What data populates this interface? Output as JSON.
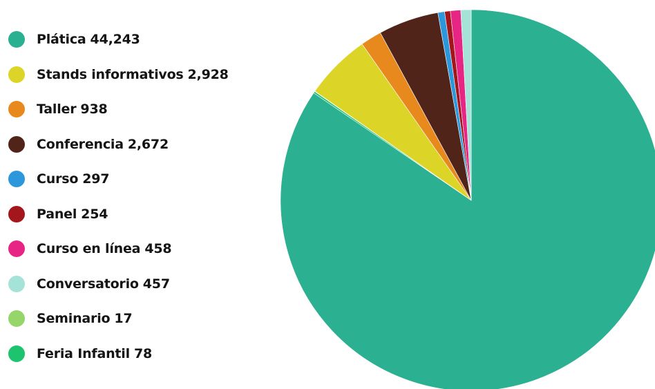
{
  "chart_data": {
    "type": "pie",
    "legend_position": "left",
    "start_angle": "top",
    "direction": "clockwise",
    "series": [
      {
        "name": "Plática",
        "value": 44243,
        "value_label": "44,243",
        "color": "#2cb092"
      },
      {
        "name": "Feria Infantil",
        "value": 78,
        "value_label": "78",
        "color": "#1dc36e"
      },
      {
        "name": "Seminario",
        "value": 17,
        "value_label": "17",
        "color": "#95d569"
      },
      {
        "name": "Stands informativos",
        "value": 2928,
        "value_label": "2,928",
        "color": "#dcd426"
      },
      {
        "name": "Taller",
        "value": 938,
        "value_label": "938",
        "color": "#e8891d"
      },
      {
        "name": "Conferencia",
        "value": 2672,
        "value_label": "2,672",
        "color": "#502419"
      },
      {
        "name": "Curso",
        "value": 297,
        "value_label": "297",
        "color": "#2c97da"
      },
      {
        "name": "Panel",
        "value": 254,
        "value_label": "254",
        "color": "#a3161c"
      },
      {
        "name": "Curso en línea",
        "value": 458,
        "value_label": "458",
        "color": "#e62584"
      },
      {
        "name": "Conversatorio",
        "value": 457,
        "value_label": "457",
        "color": "#a5e3d8"
      }
    ],
    "legend_order": [
      "Plática",
      "Stands informativos",
      "Taller",
      "Conferencia",
      "Curso",
      "Panel",
      "Curso en línea",
      "Conversatorio",
      "Seminario",
      "Feria Infantil"
    ]
  }
}
